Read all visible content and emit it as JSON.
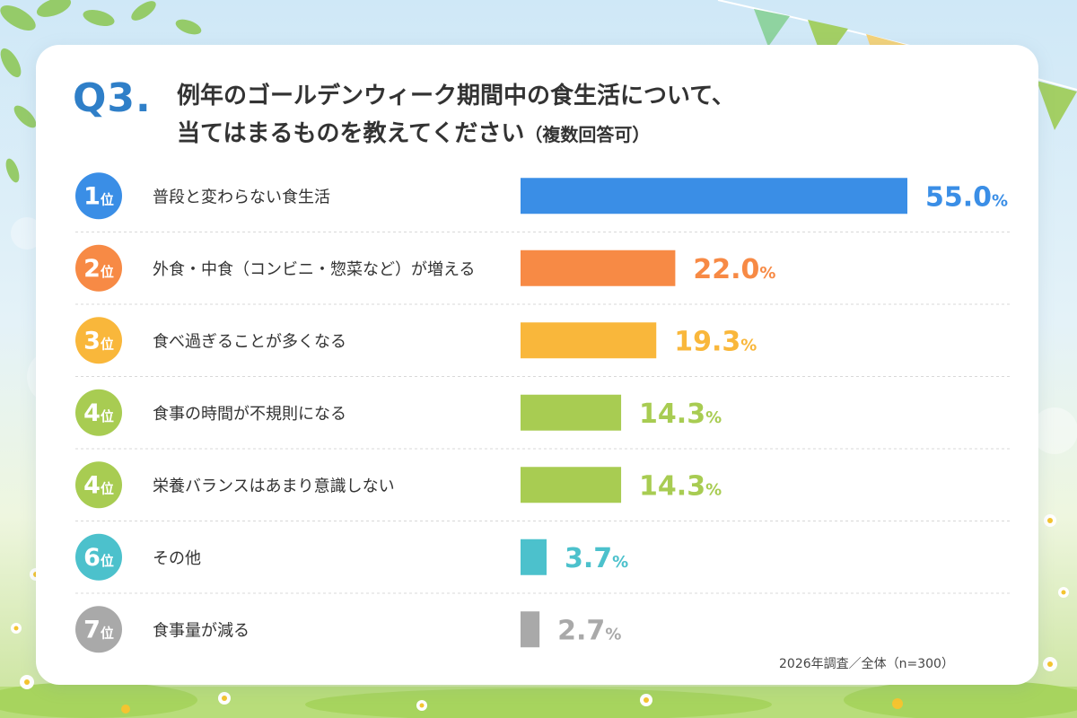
{
  "question": {
    "label": "Q3.",
    "title_line1": "例年のゴールデンウィーク期間中の食生活について、",
    "title_line2": "当てはまるものを教えてください",
    "title_note": "（複数回答可）"
  },
  "footer": "2026年調査／全体（n=300）",
  "chart_data": {
    "type": "bar",
    "orientation": "horizontal",
    "title": "例年のゴールデンウィーク期間中の食生活について、当てはまるものを教えてください（複数回答可）",
    "value_unit": "%",
    "xlim": [
      0,
      55
    ],
    "grid": false,
    "categories": [
      "普段と変わらない食生活",
      "外食・中食（コンビニ・惣菜など）が増える",
      "食べ過ぎることが多くなる",
      "食事の時間が不規則になる",
      "栄養バランスはあまり意識しない",
      "その他",
      "食事量が減る"
    ],
    "values": [
      55.0,
      22.0,
      19.3,
      14.3,
      14.3,
      3.7,
      2.7
    ],
    "value_labels": [
      "55.0",
      "22.0",
      "19.3",
      "14.3",
      "14.3",
      "3.7",
      "2.7"
    ],
    "ranks": [
      {
        "num": "1",
        "suffix": "位"
      },
      {
        "num": "2",
        "suffix": "位"
      },
      {
        "num": "3",
        "suffix": "位"
      },
      {
        "num": "4",
        "suffix": "位"
      },
      {
        "num": "4",
        "suffix": "位"
      },
      {
        "num": "6",
        "suffix": "位"
      },
      {
        "num": "7",
        "suffix": "位"
      }
    ],
    "colors": [
      "#3a8ee6",
      "#f78a45",
      "#f9b73b",
      "#a8cc52",
      "#a8cc52",
      "#4cc1cc",
      "#a9a9a9"
    ]
  }
}
